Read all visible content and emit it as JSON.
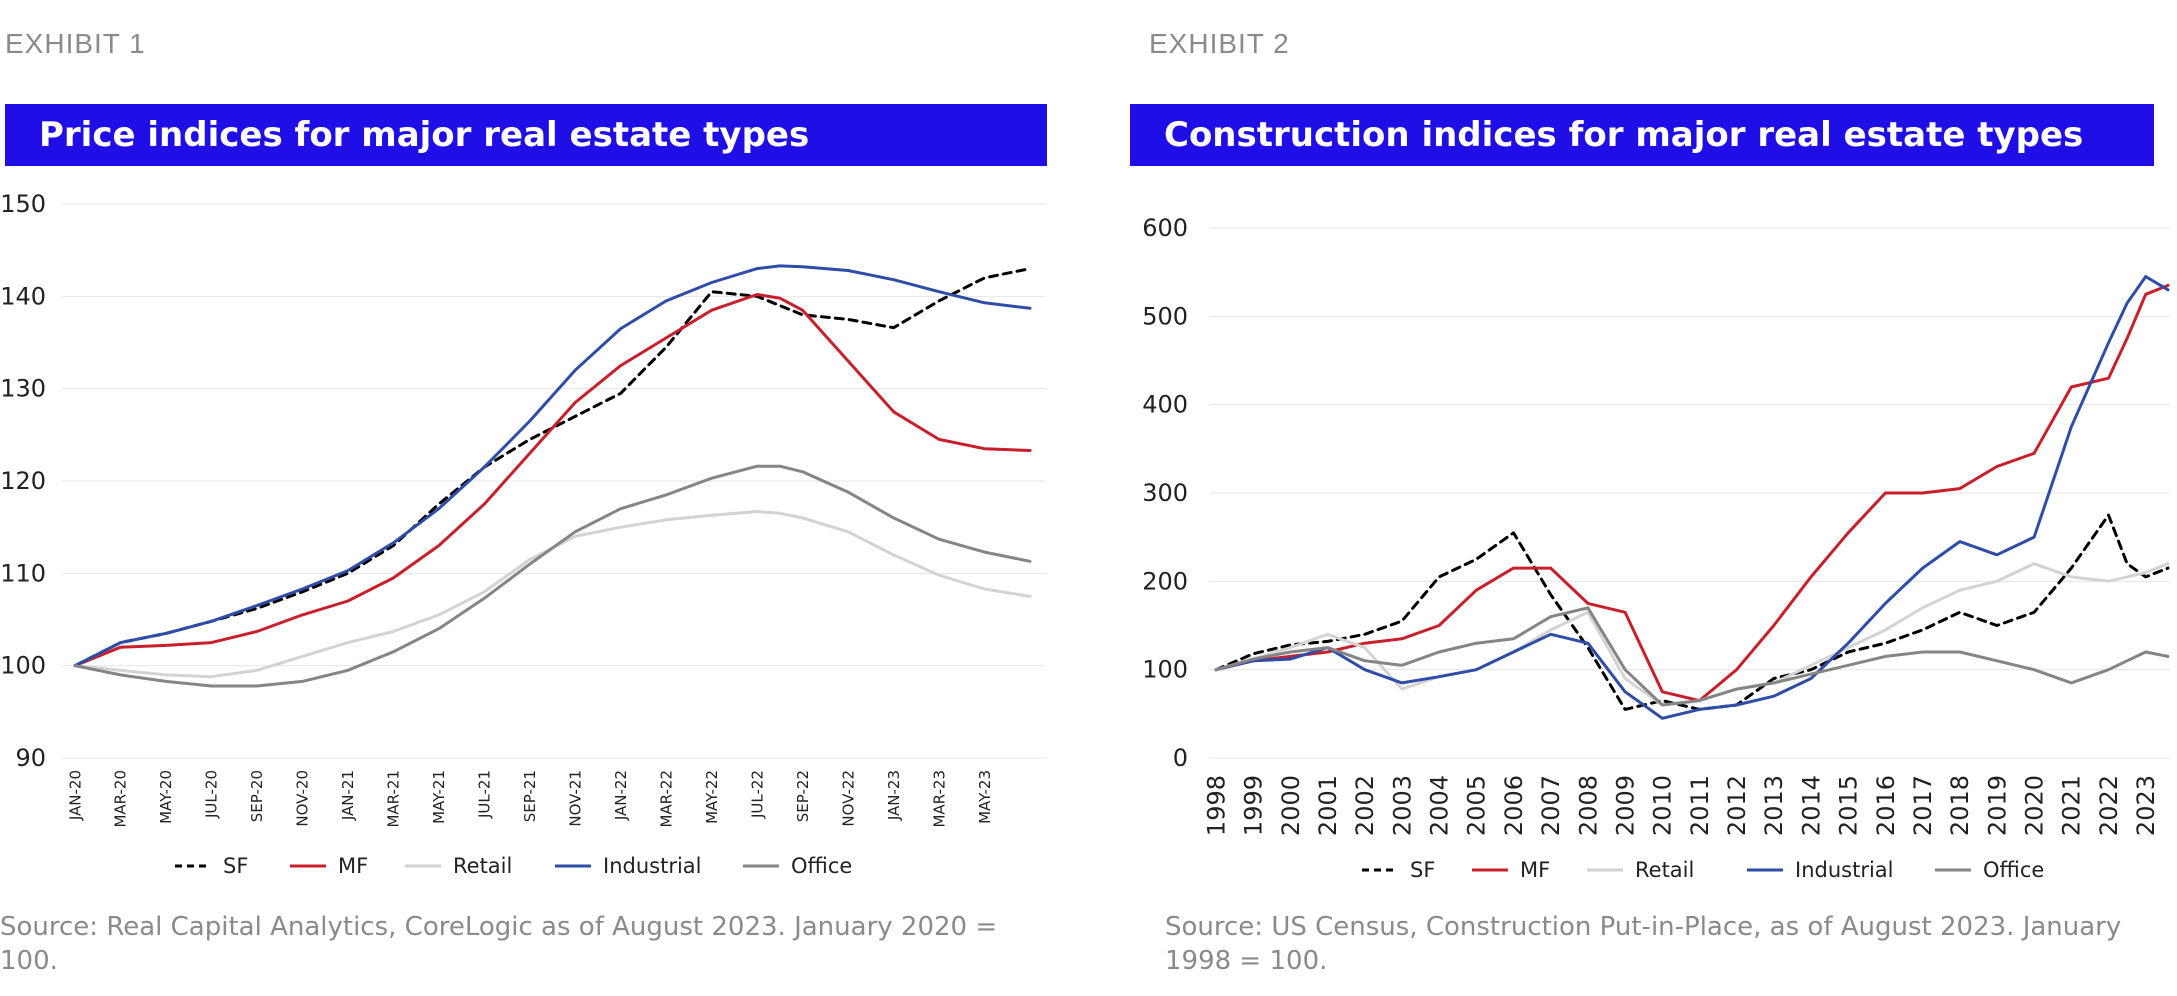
{
  "exhibit1": {
    "label": "EXHIBIT 1",
    "source": "Source: Real Capital Analytics, CoreLogic as of August 2023. January 2020 = 100."
  },
  "exhibit2": {
    "label": "EXHIBIT 2",
    "source": "Source: US Census, Construction Put-in-Place, as of August 2023. January 1998 = 100."
  },
  "colors": {
    "SF": "#000000",
    "MF": "#c8202a",
    "Retail": "#d3d3d3",
    "Industrial": "#2e4da8",
    "Office": "#858585",
    "title_bar": "#1f0fe6"
  },
  "chart_data": [
    {
      "type": "line",
      "title": "Price indices for major real estate types",
      "ylim": [
        90,
        150
      ],
      "yticks": [
        90,
        100,
        110,
        120,
        130,
        140,
        150
      ],
      "x_tick_labels": [
        "JAN-20",
        "MAR-20",
        "MAY-20",
        "JUL-20",
        "SEP-20",
        "NOV-20",
        "JAN-21",
        "MAR-21",
        "MAY-21",
        "JUL-21",
        "SEP-21",
        "NOV-21",
        "JAN-22",
        "MAR-22",
        "MAY-22",
        "JUL-22",
        "SEP-22",
        "NOV-22",
        "JAN-23",
        "MAR-23",
        "MAY-23"
      ],
      "x": [
        "2020-01",
        "2020-03",
        "2020-05",
        "2020-07",
        "2020-09",
        "2020-11",
        "2021-01",
        "2021-03",
        "2021-05",
        "2021-07",
        "2021-09",
        "2021-11",
        "2022-01",
        "2022-03",
        "2022-05",
        "2022-07",
        "2022-08",
        "2022-09",
        "2022-11",
        "2023-01",
        "2023-03",
        "2023-05",
        "2023-07"
      ],
      "grid": true,
      "legend": "bottom",
      "series": [
        {
          "name": "SF",
          "values": [
            100,
            102.5,
            103.5,
            104.8,
            106.2,
            108.0,
            110.0,
            113.0,
            117.5,
            121.5,
            124.5,
            127.0,
            129.5,
            134.5,
            140.5,
            140.0,
            139.0,
            138.0,
            137.5,
            136.6,
            139.5,
            142.0,
            143.0
          ]
        },
        {
          "name": "MF",
          "values": [
            100,
            102.0,
            102.2,
            102.5,
            103.7,
            105.5,
            107.0,
            109.5,
            113.0,
            117.5,
            123.0,
            128.5,
            132.5,
            135.5,
            138.5,
            140.2,
            139.8,
            138.5,
            133.0,
            127.5,
            124.5,
            123.5,
            123.3
          ]
        },
        {
          "name": "Retail",
          "values": [
            100,
            99.5,
            99.0,
            98.8,
            99.5,
            101.0,
            102.5,
            103.7,
            105.5,
            108.0,
            111.5,
            114.0,
            115.0,
            115.8,
            116.3,
            116.7,
            116.5,
            116.0,
            114.5,
            112.0,
            109.8,
            108.3,
            107.5
          ]
        },
        {
          "name": "Industrial",
          "values": [
            100,
            102.5,
            103.5,
            104.8,
            106.5,
            108.3,
            110.3,
            113.3,
            117.0,
            121.5,
            126.5,
            132.0,
            136.5,
            139.5,
            141.5,
            143.0,
            143.3,
            143.2,
            142.8,
            141.8,
            140.5,
            139.3,
            138.7
          ]
        },
        {
          "name": "Office",
          "values": [
            100,
            99.0,
            98.3,
            97.8,
            97.8,
            98.3,
            99.5,
            101.5,
            104.0,
            107.3,
            111.0,
            114.5,
            117.0,
            118.5,
            120.3,
            121.6,
            121.6,
            121.0,
            118.8,
            116.0,
            113.7,
            112.3,
            111.3
          ]
        }
      ]
    },
    {
      "type": "line",
      "title": "Construction indices for major real estate types",
      "ylim": [
        0,
        600
      ],
      "yticks": [
        0,
        100,
        200,
        300,
        400,
        500,
        600
      ],
      "x_tick_labels": [
        "1998",
        "1999",
        "2000",
        "2001",
        "2002",
        "2003",
        "2004",
        "2005",
        "2006",
        "2007",
        "2008",
        "2009",
        "2010",
        "2011",
        "2012",
        "2013",
        "2014",
        "2015",
        "2016",
        "2017",
        "2018",
        "2019",
        "2020",
        "2021",
        "2022",
        "2023"
      ],
      "x": [
        1998,
        1999,
        2000,
        2001,
        2002,
        2003,
        2004,
        2005,
        2006,
        2007,
        2008,
        2009,
        2010,
        2011,
        2012,
        2013,
        2014,
        2015,
        2016,
        2017,
        2018,
        2019,
        2020,
        2021,
        2022,
        2022.5,
        2023,
        2023.6
      ],
      "grid": true,
      "legend": "bottom",
      "series": [
        {
          "name": "SF",
          "values": [
            100,
            118,
            128,
            132,
            140,
            155,
            205,
            225,
            255,
            185,
            125,
            55,
            65,
            55,
            60,
            90,
            100,
            120,
            130,
            145,
            165,
            150,
            165,
            215,
            275,
            220,
            205,
            215
          ]
        },
        {
          "name": "MF",
          "values": [
            100,
            110,
            115,
            120,
            130,
            135,
            150,
            190,
            215,
            215,
            175,
            165,
            75,
            65,
            100,
            150,
            205,
            255,
            300,
            300,
            305,
            330,
            345,
            420,
            430,
            475,
            525,
            535
          ]
        },
        {
          "name": "Retail",
          "values": [
            100,
            112,
            125,
            140,
            125,
            78,
            92,
            100,
            120,
            145,
            165,
            90,
            60,
            65,
            78,
            85,
            105,
            125,
            145,
            170,
            190,
            200,
            220,
            205,
            200,
            205,
            210,
            220
          ]
        },
        {
          "name": "Industrial",
          "values": [
            100,
            110,
            112,
            125,
            100,
            85,
            92,
            100,
            120,
            140,
            130,
            75,
            45,
            55,
            60,
            70,
            90,
            130,
            175,
            215,
            245,
            230,
            250,
            375,
            470,
            515,
            545,
            530
          ]
        },
        {
          "name": "Office",
          "values": [
            100,
            112,
            120,
            125,
            110,
            105,
            120,
            130,
            135,
            160,
            170,
            100,
            60,
            65,
            78,
            85,
            95,
            105,
            115,
            120,
            120,
            110,
            100,
            85,
            100,
            110,
            120,
            115
          ]
        }
      ]
    }
  ]
}
